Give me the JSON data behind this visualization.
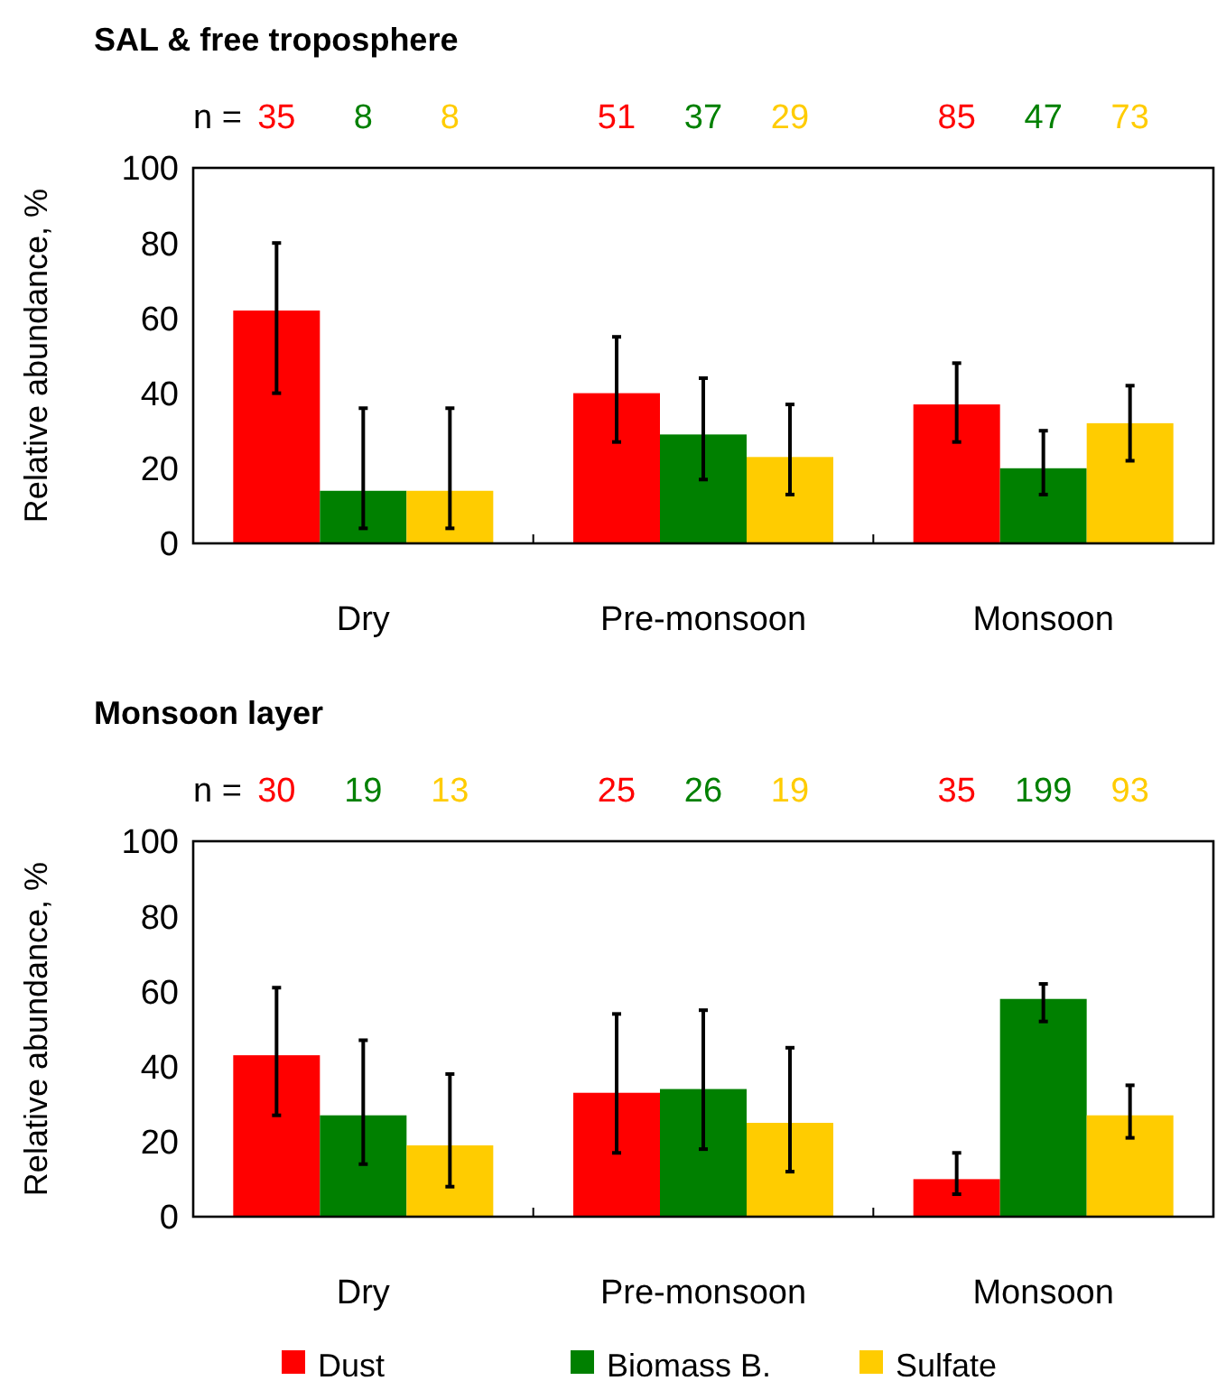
{
  "chart_data": [
    {
      "type": "bar",
      "title": "SAL & free troposphere",
      "ylabel": "Relative abundance, %",
      "categories": [
        "Dry",
        "Pre-monsoon",
        "Monsoon"
      ],
      "ylim": [
        0,
        100
      ],
      "yticks": [
        0,
        20,
        40,
        60,
        80,
        100
      ],
      "grid": false,
      "legend": false,
      "annotations": [
        "n =",
        "35",
        "8",
        "8",
        "51",
        "37",
        "29",
        "85",
        "47",
        "73"
      ],
      "series": [
        {
          "color": "#ff0000",
          "values": [
            62,
            40,
            37
          ],
          "errors": [
            [
              40,
              80
            ],
            [
              27,
              55
            ],
            [
              27,
              48
            ]
          ]
        },
        {
          "color": "#008000",
          "values": [
            14,
            29,
            20
          ],
          "errors": [
            [
              4,
              36
            ],
            [
              17,
              44
            ],
            [
              13,
              30
            ]
          ]
        },
        {
          "color": "#ffcc00",
          "values": [
            14,
            23,
            32
          ],
          "errors": [
            [
              4,
              36
            ],
            [
              13,
              37
            ],
            [
              22,
              42
            ]
          ]
        }
      ]
    },
    {
      "type": "bar",
      "title": "Monsoon layer",
      "ylabel": "Relative abundance, %",
      "categories": [
        "Dry",
        "Pre-monsoon",
        "Monsoon"
      ],
      "ylim": [
        0,
        100
      ],
      "yticks": [
        0,
        20,
        40,
        60,
        80,
        100
      ],
      "grid": false,
      "legend": "bottom",
      "annotations": [
        "n =",
        "30",
        "19",
        "13",
        "25",
        "26",
        "19",
        "35",
        "199",
        "93"
      ],
      "series": [
        {
          "name": "Dust",
          "color": "#ff0000",
          "values": [
            43,
            33,
            10
          ],
          "errors": [
            [
              27,
              61
            ],
            [
              17,
              54
            ],
            [
              6,
              17
            ]
          ]
        },
        {
          "name": "Biomass B.",
          "color": "#008000",
          "values": [
            27,
            34,
            58
          ],
          "errors": [
            [
              14,
              47
            ],
            [
              18,
              55
            ],
            [
              52,
              62
            ]
          ]
        },
        {
          "name": "Sulfate",
          "color": "#ffcc00",
          "values": [
            19,
            25,
            27
          ],
          "errors": [
            [
              8,
              38
            ],
            [
              12,
              45
            ],
            [
              21,
              35
            ]
          ]
        }
      ]
    }
  ]
}
